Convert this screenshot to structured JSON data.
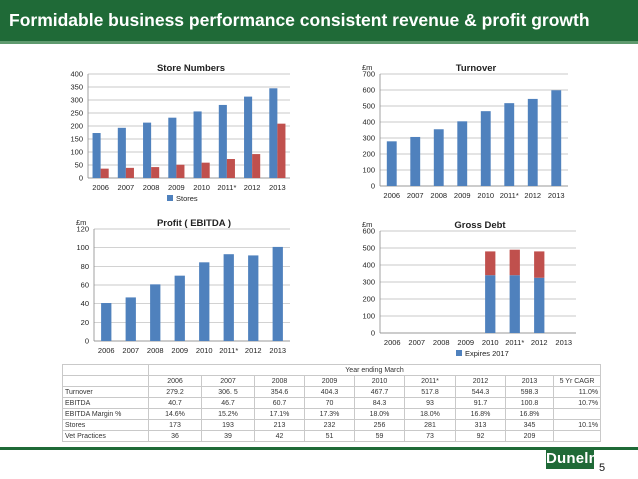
{
  "header": {
    "title": "Formidable business performance consistent revenue & profit growth"
  },
  "colors": {
    "header_bg": "#1f6a37",
    "bar_blue": "#4f81bd",
    "bar_red": "#c0504d",
    "grid": "#b7b7b7"
  },
  "chart_data": [
    {
      "id": "store",
      "type": "bar",
      "title": "Store Numbers",
      "unit": "",
      "categories": [
        "2006",
        "2007",
        "2008",
        "2009",
        "2010",
        "2011*",
        "2012",
        "2013"
      ],
      "series": [
        {
          "name": "Stores",
          "color": "#4f81bd",
          "values": [
            173,
            193,
            213,
            232,
            256,
            281,
            313,
            345
          ]
        },
        {
          "name": "",
          "color": "#c0504d",
          "values": [
            36,
            39,
            42,
            51,
            59,
            73,
            92,
            209
          ]
        }
      ],
      "ylim": [
        0,
        400
      ],
      "yticks": [
        0,
        50,
        100,
        150,
        200,
        250,
        300,
        350,
        400
      ],
      "grid": true,
      "legend": "bottom",
      "stacked": false
    },
    {
      "id": "turnover",
      "type": "bar",
      "title": "Turnover",
      "unit": "£m",
      "categories": [
        "2006",
        "2007",
        "2008",
        "2009",
        "2010",
        "2011*",
        "2012",
        "2013"
      ],
      "series": [
        {
          "name": "",
          "color": "#4f81bd",
          "values": [
            279.2,
            306.5,
            354.6,
            404.3,
            467.7,
            517.8,
            544.3,
            598.3
          ]
        }
      ],
      "ylim": [
        0,
        700
      ],
      "yticks": [
        0,
        100,
        200,
        300,
        400,
        500,
        600,
        700
      ],
      "grid": true,
      "legend": "none",
      "stacked": false
    },
    {
      "id": "profit",
      "type": "bar",
      "title": "Profit ( EBITDA )",
      "unit": "£m",
      "categories": [
        "2006",
        "2007",
        "2008",
        "2009",
        "2010",
        "2011*",
        "2012",
        "2013"
      ],
      "series": [
        {
          "name": "",
          "color": "#4f81bd",
          "values": [
            40.7,
            46.7,
            60.7,
            70,
            84.3,
            93,
            91.7,
            100.8
          ]
        }
      ],
      "ylim": [
        0,
        120
      ],
      "yticks": [
        0,
        20,
        40,
        60,
        80,
        100,
        120
      ],
      "grid": true,
      "legend": "none",
      "stacked": false
    },
    {
      "id": "debt",
      "type": "bar",
      "title": "Gross Debt",
      "unit": "£m",
      "categories": [
        "2006",
        "2007",
        "2008",
        "2009",
        "2010",
        "2011*",
        "2012",
        "2013"
      ],
      "series": [
        {
          "name": "Expires 2017",
          "color": "#4f81bd",
          "values": [
            0,
            0,
            0,
            0,
            340,
            340,
            325,
            0
          ]
        },
        {
          "name": "",
          "color": "#c0504d",
          "values": [
            0,
            0,
            0,
            0,
            140,
            150,
            155,
            0
          ]
        }
      ],
      "ylim": [
        0,
        600
      ],
      "yticks": [
        0,
        100,
        200,
        300,
        400,
        500,
        600
      ],
      "grid": true,
      "legend": "bottom",
      "stacked": true
    }
  ],
  "table": {
    "caption": "Year ending March",
    "columns": [
      "",
      "2006",
      "2007",
      "2008",
      "2009",
      "2010",
      "2011*",
      "2012",
      "2013",
      "5 Yr CAGR"
    ],
    "rows": [
      [
        "Turnover",
        "279.2",
        "306. 5",
        "354.6",
        "404.3",
        "467.7",
        "517.8",
        "544.3",
        "598.3",
        "11.0%"
      ],
      [
        "EBITDA",
        "40.7",
        "46.7",
        "60.7",
        "70",
        "84.3",
        "93",
        "91.7",
        "100.8",
        "10.7%"
      ],
      [
        "EBITDA Margin %",
        "14.6%",
        "15.2%",
        "17.1%",
        "17.3%",
        "18.0%",
        "18.0%",
        "16.8%",
        "16.8%",
        ""
      ],
      [
        "Stores",
        "173",
        "193",
        "213",
        "232",
        "256",
        "281",
        "313",
        "345",
        "10.1%"
      ],
      [
        "Vet Practices",
        "36",
        "39",
        "42",
        "51",
        "59",
        "73",
        "92",
        "209",
        ""
      ]
    ]
  },
  "footer": {
    "logo": "Dunelm",
    "page_number": "5"
  }
}
